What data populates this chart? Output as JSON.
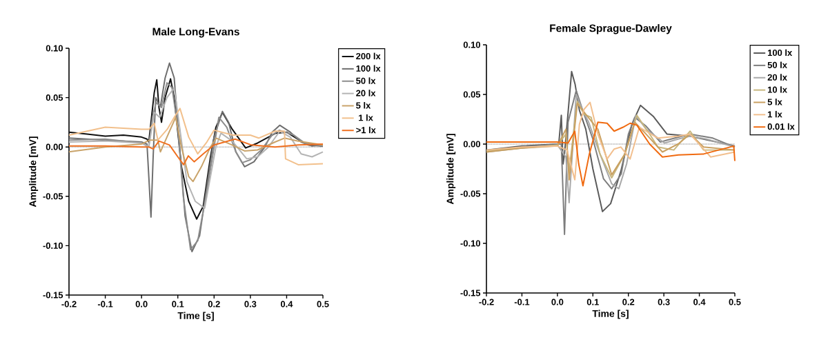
{
  "chart_data": [
    {
      "type": "line",
      "title": "Male Long-Evans",
      "xlabel": "Time [s]",
      "ylabel": "Amplitude [mV]",
      "xlim": [
        -0.2,
        0.5
      ],
      "ylim": [
        -0.15,
        0.1
      ],
      "xticks": [
        {
          "value": -0.2,
          "label": "-0.2"
        },
        {
          "value": -0.1,
          "label": "-0.1"
        },
        {
          "value": 0,
          "label": "0.0"
        },
        {
          "value": 0.1,
          "label": "0.1"
        },
        {
          "value": 0.2,
          "label": "0.2"
        },
        {
          "value": 0.3,
          "label": "0.3"
        },
        {
          "value": 0.4,
          "label": "0.4"
        },
        {
          "value": 0.5,
          "label": "0.5"
        }
      ],
      "yticks": [
        {
          "value": -0.15,
          "label": "-0.15"
        },
        {
          "value": -0.1,
          "label": "-0.10"
        },
        {
          "value": -0.05,
          "label": "-0.05"
        },
        {
          "value": 0,
          "label": "0.00"
        },
        {
          "value": 0.05,
          "label": "0.05"
        },
        {
          "value": 0.1,
          "label": "0.10"
        }
      ],
      "legend": "right",
      "ref_lines": [
        {
          "axis": "y",
          "value": 0,
          "line_style": "dotted",
          "color": "#333333"
        }
      ],
      "series": [
        {
          "name": "200 lx",
          "color": "#111111",
          "x": [
            -0.2,
            -0.15,
            -0.1,
            -0.05,
            0,
            0.015,
            0.02,
            0.035,
            0.042,
            0.048,
            0.055,
            0.065,
            0.08,
            0.09,
            0.11,
            0.13,
            0.152,
            0.17,
            0.19,
            0.205,
            0.223,
            0.25,
            0.287,
            0.32,
            0.35,
            0.37,
            0.4,
            0.43,
            0.46,
            0.5
          ],
          "values": [
            0.015,
            0.013,
            0.011,
            0.012,
            0.01,
            0.008,
            0.005,
            0.055,
            0.068,
            0.04,
            0.025,
            0.05,
            0.069,
            0.05,
            -0.02,
            -0.055,
            -0.073,
            -0.06,
            -0.01,
            0.02,
            0.035,
            0.018,
            -0.001,
            0.004,
            0.01,
            0.014,
            0.015,
            0.008,
            0.002,
            0.001
          ]
        },
        {
          "name": "100 lx",
          "color": "#6e6e6e",
          "x": [
            -0.2,
            -0.1,
            0,
            0.015,
            0.02,
            0.026,
            0.032,
            0.039,
            0.048,
            0.052,
            0.065,
            0.077,
            0.09,
            0.105,
            0.12,
            0.139,
            0.16,
            0.18,
            0.2,
            0.223,
            0.24,
            0.26,
            0.284,
            0.31,
            0.34,
            0.36,
            0.381,
            0.41,
            0.44,
            0.47,
            0.5
          ],
          "values": [
            0.009,
            0.007,
            0.005,
            0.003,
            -0.03,
            -0.071,
            -0.01,
            0.05,
            0.043,
            0.041,
            0.07,
            0.085,
            0.07,
            0.0,
            -0.07,
            -0.106,
            -0.09,
            -0.04,
            0.01,
            0.036,
            0.025,
            -0.005,
            -0.02,
            -0.015,
            0.0,
            0.015,
            0.022,
            0.015,
            0.005,
            0.001,
            0.002
          ]
        },
        {
          "name": "50 lx",
          "color": "#8c8c8c",
          "x": [
            -0.2,
            -0.1,
            0,
            0.02,
            0.03,
            0.04,
            0.055,
            0.07,
            0.084,
            0.1,
            0.115,
            0.135,
            0.155,
            0.18,
            0.2,
            0.213,
            0.235,
            0.26,
            0.277,
            0.3,
            0.33,
            0.36,
            0.38,
            0.42,
            0.45,
            0.5
          ],
          "values": [
            0.007,
            0.008,
            0.004,
            0.0,
            0.03,
            0.045,
            0.04,
            0.065,
            0.06,
            0.02,
            -0.05,
            -0.104,
            -0.095,
            -0.045,
            0.0,
            0.03,
            0.02,
            -0.005,
            -0.016,
            -0.013,
            -0.003,
            0.012,
            0.017,
            0.012,
            0.004,
            0.001
          ]
        },
        {
          "name": "20 lx",
          "color": "#b4b4b4",
          "x": [
            -0.2,
            -0.1,
            0,
            0.02,
            0.035,
            0.05,
            0.07,
            0.09,
            0.105,
            0.125,
            0.148,
            0.174,
            0.19,
            0.205,
            0.219,
            0.25,
            0.29,
            0.32,
            0.35,
            0.381,
            0.41,
            0.44,
            0.47,
            0.5
          ],
          "values": [
            0.005,
            0.006,
            0.004,
            0.0,
            0.035,
            0.03,
            0.05,
            0.06,
            0.02,
            -0.035,
            -0.055,
            -0.062,
            -0.03,
            0.0,
            0.014,
            0.006,
            -0.012,
            -0.01,
            0.0,
            0.016,
            0.01,
            -0.007,
            -0.01,
            -0.005
          ]
        },
        {
          "name": "5 lx",
          "color": "#c9a36a",
          "x": [
            -0.2,
            -0.1,
            0,
            0.023,
            0.045,
            0.052,
            0.07,
            0.094,
            0.11,
            0.13,
            0.142,
            0.165,
            0.19,
            0.206,
            0.25,
            0.284,
            0.32,
            0.368,
            0.394,
            0.43,
            0.5
          ],
          "values": [
            -0.005,
            0.0,
            0.003,
            0.007,
            0.007,
            -0.005,
            0.01,
            0.03,
            0.0,
            -0.03,
            -0.035,
            -0.02,
            0.0,
            0.009,
            0.002,
            -0.004,
            -0.003,
            0.005,
            0.009,
            0.006,
            0.002
          ]
        },
        {
          "name": " 1 lx",
          "color": "#f2c08c",
          "x": [
            -0.2,
            -0.1,
            -0.05,
            0,
            0.021,
            0.035,
            0.045,
            0.071,
            0.09,
            0.106,
            0.13,
            0.155,
            0.18,
            0.2,
            0.252,
            0.3,
            0.323,
            0.368,
            0.394,
            0.397,
            0.432,
            0.5
          ],
          "values": [
            0.012,
            0.02,
            0.019,
            0.018,
            0.018,
            0.024,
            0.007,
            0.018,
            0.03,
            0.039,
            0.01,
            -0.007,
            0.005,
            0.017,
            0.012,
            0.012,
            0.009,
            0.016,
            0.016,
            -0.012,
            -0.018,
            -0.017
          ]
        },
        {
          "name": ">1 lx",
          "color": "#f07020",
          "x": [
            -0.2,
            -0.1,
            0,
            0.02,
            0.032,
            0.048,
            0.077,
            0.1,
            0.116,
            0.129,
            0.145,
            0.17,
            0.2,
            0.258,
            0.303,
            0.368,
            0.432,
            0.5
          ],
          "values": [
            0.001,
            0.001,
            0.0,
            0.0,
            -0.002,
            0.006,
            0.002,
            -0.01,
            -0.018,
            -0.009,
            -0.015,
            -0.007,
            0.002,
            0.008,
            0.002,
            0.0,
            0.002,
            0.003
          ]
        }
      ]
    },
    {
      "type": "line",
      "title": "Female Sprague-Dawley",
      "xlabel": "Time [s]",
      "ylabel": "Amplitude [mV]",
      "xlim": [
        -0.2,
        0.5
      ],
      "ylim": [
        -0.15,
        0.1
      ],
      "xticks": [
        {
          "value": -0.2,
          "label": "-0.2"
        },
        {
          "value": -0.1,
          "label": "-0.1"
        },
        {
          "value": 0,
          "label": "0.0"
        },
        {
          "value": 0.1,
          "label": "0.1"
        },
        {
          "value": 0.2,
          "label": "0.2"
        },
        {
          "value": 0.3,
          "label": "0.3"
        },
        {
          "value": 0.4,
          "label": "0.4"
        },
        {
          "value": 0.5,
          "label": "0.5"
        }
      ],
      "yticks": [
        {
          "value": -0.15,
          "label": "-0.15"
        },
        {
          "value": -0.1,
          "label": "-0.10"
        },
        {
          "value": -0.05,
          "label": "-0.05"
        },
        {
          "value": 0,
          "label": "0.00"
        },
        {
          "value": 0.05,
          "label": "0.05"
        },
        {
          "value": 0.1,
          "label": "0.10"
        }
      ],
      "legend": "right",
      "ref_lines": [
        {
          "axis": "y",
          "value": 0,
          "line_style": "dotted",
          "color": "#333333"
        }
      ],
      "series": [
        {
          "name": "100 lx",
          "color": "#5a5a5a",
          "x": [
            -0.2,
            -0.1,
            0,
            0.004,
            0.011,
            0.016,
            0.02,
            0.04,
            0.05,
            0.062,
            0.08,
            0.1,
            0.127,
            0.15,
            0.179,
            0.21,
            0.234,
            0.27,
            0.309,
            0.374,
            0.438,
            0.5
          ],
          "values": [
            -0.006,
            -0.002,
            0.0,
            0.001,
            0.029,
            -0.02,
            -0.01,
            0.073,
            0.06,
            0.034,
            0.015,
            -0.025,
            -0.068,
            -0.06,
            -0.027,
            0.02,
            0.039,
            0.028,
            0.01,
            0.008,
            0.003,
            -0.002
          ]
        },
        {
          "name": "50 lx",
          "color": "#7d7d7d",
          "x": [
            -0.2,
            -0.1,
            0,
            0.011,
            0.02,
            0.03,
            0.053,
            0.075,
            0.1,
            0.13,
            0.153,
            0.18,
            0.2,
            0.218,
            0.25,
            0.29,
            0.309,
            0.374,
            0.438,
            0.5
          ],
          "values": [
            -0.007,
            -0.003,
            0.0,
            0.0,
            -0.091,
            0.022,
            0.054,
            0.03,
            0.005,
            -0.035,
            -0.045,
            -0.03,
            0.01,
            0.027,
            0.018,
            0.002,
            0.004,
            0.01,
            0.006,
            -0.003
          ]
        },
        {
          "name": "20 lx",
          "color": "#a8a8a8",
          "x": [
            -0.2,
            -0.1,
            0,
            0.024,
            0.033,
            0.04,
            0.053,
            0.07,
            0.088,
            0.12,
            0.153,
            0.173,
            0.195,
            0.221,
            0.25,
            0.302,
            0.34,
            0.374,
            0.42,
            0.5
          ],
          "values": [
            -0.008,
            -0.004,
            -0.001,
            -0.013,
            -0.059,
            -0.02,
            0.05,
            0.035,
            0.022,
            -0.01,
            -0.04,
            -0.045,
            -0.02,
            0.029,
            0.015,
            0.001,
            0.005,
            0.008,
            0.005,
            -0.003
          ]
        },
        {
          "name": "10 lx",
          "color": "#c8b77e",
          "x": [
            -0.2,
            -0.1,
            0,
            0.024,
            0.033,
            0.056,
            0.075,
            0.095,
            0.12,
            0.153,
            0.19,
            0.224,
            0.26,
            0.283,
            0.328,
            0.374,
            0.412,
            0.5
          ],
          "values": [
            -0.007,
            -0.004,
            -0.001,
            0.01,
            -0.027,
            0.043,
            0.03,
            0.027,
            -0.01,
            -0.034,
            -0.01,
            0.029,
            0.01,
            -0.003,
            -0.006,
            0.013,
            -0.006,
            -0.006
          ]
        },
        {
          "name": "5 lx",
          "color": "#c9a060",
          "x": [
            -0.2,
            -0.1,
            0,
            0.024,
            0.033,
            0.056,
            0.08,
            0.114,
            0.153,
            0.19,
            0.218,
            0.25,
            0.296,
            0.34,
            0.374,
            0.412,
            0.5
          ],
          "values": [
            -0.008,
            -0.004,
            -0.002,
            0.015,
            -0.036,
            0.041,
            0.03,
            0.015,
            -0.031,
            -0.01,
            0.022,
            0.01,
            -0.008,
            0.0,
            0.01,
            -0.003,
            -0.006
          ]
        },
        {
          "name": "1 lx",
          "color": "#f2bf8e",
          "x": [
            -0.2,
            -0.1,
            0,
            0.027,
            0.049,
            0.062,
            0.075,
            0.092,
            0.114,
            0.14,
            0.16,
            0.179,
            0.205,
            0.231,
            0.283,
            0.341,
            0.374,
            0.432,
            0.5
          ],
          "values": [
            -0.006,
            -0.003,
            -0.002,
            -0.006,
            -0.036,
            0.02,
            0.035,
            0.042,
            0.01,
            -0.015,
            -0.005,
            -0.003,
            -0.015,
            0.017,
            0.006,
            0.008,
            0.01,
            -0.013,
            -0.008
          ]
        },
        {
          "name": "0.01 lx",
          "color": "#f06a10",
          "x": [
            -0.2,
            -0.1,
            0,
            0.03,
            0.049,
            0.06,
            0.072,
            0.09,
            0.114,
            0.14,
            0.16,
            0.185,
            0.205,
            0.224,
            0.26,
            0.296,
            0.341,
            0.412,
            0.497,
            0.5
          ],
          "values": [
            0.002,
            0.002,
            0.002,
            0.001,
            0.013,
            -0.02,
            -0.042,
            -0.01,
            0.022,
            0.021,
            0.013,
            0.017,
            0.021,
            0.019,
            0.0,
            -0.013,
            -0.011,
            -0.01,
            -0.002,
            -0.017
          ]
        }
      ]
    }
  ]
}
